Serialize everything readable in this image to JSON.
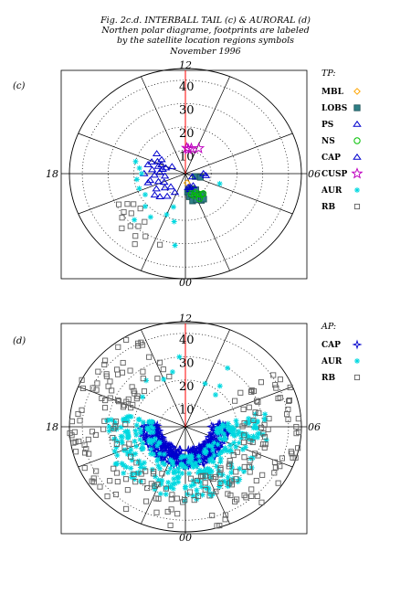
{
  "header": {
    "line1": "Fig. 2c.d. INTERBALL TAIL (c) & AURORAL (d)",
    "line2": "Northen polar diagrame, footprints are labeled",
    "line3": "by the satellite location regions symbols",
    "line4": "November 1996"
  },
  "colors": {
    "MBL": "#ffa500",
    "LOBS": "#2e7f86",
    "PS": "#0000cd",
    "NS": "#00c000",
    "CAP": "#0000cd",
    "CUSP": "#c000c0",
    "AUR": "#00d8e0",
    "RB": "#606060",
    "meridian": "#ff0000"
  },
  "chart_data": [
    {
      "id": "c",
      "type": "scatter",
      "projection": "polar",
      "panel_label": "(c)",
      "title": "",
      "legend_title": "TP:",
      "legend_placement": "right",
      "clock_labels": {
        "top": "12",
        "bottom": "00",
        "left": "18",
        "right": "06"
      },
      "radial_ticks": [
        "40",
        "30",
        "20",
        "10"
      ],
      "rlim": [
        0,
        45
      ],
      "grid": true,
      "series": [
        {
          "name": "MBL",
          "marker": "diamond-open",
          "points": [
            [
              0.6,
              4
            ],
            [
              1.0,
              9
            ]
          ]
        },
        {
          "name": "LOBS",
          "marker": "square-filled",
          "points": [
            [
              0.4,
              8
            ],
            [
              0.6,
              10
            ],
            [
              0.8,
              7
            ],
            [
              1.0,
              9
            ],
            [
              1.2,
              8
            ],
            [
              1.5,
              7
            ],
            [
              1.8,
              10
            ],
            [
              2.0,
              8
            ],
            [
              2.4,
              11
            ],
            [
              4.8,
              4
            ],
            [
              5.0,
              6
            ],
            [
              0.9,
              12
            ],
            [
              1.4,
              12
            ],
            [
              1.9,
              13
            ],
            [
              2.2,
              13
            ]
          ]
        },
        {
          "name": "PS",
          "marker": "triangle-open",
          "points": [
            [
              0.7,
              6
            ],
            [
              1.0,
              7
            ],
            [
              1.2,
              6
            ],
            [
              2.0,
              6
            ]
          ]
        },
        {
          "name": "NS",
          "marker": "circle-open",
          "points": [
            [
              1.0,
              9
            ],
            [
              1.3,
              10
            ],
            [
              1.6,
              9
            ],
            [
              2.0,
              10
            ],
            [
              2.3,
              11
            ],
            [
              2.6,
              11
            ],
            [
              1.8,
              12
            ]
          ]
        },
        {
          "name": "CAP",
          "marker": "triangle-open",
          "points": [
            [
              16.8,
              8
            ],
            [
              16.5,
              10
            ],
            [
              16.3,
              12
            ],
            [
              16.6,
              14
            ],
            [
              16.9,
              11
            ],
            [
              17.2,
              9
            ],
            [
              17.5,
              13
            ],
            [
              17.8,
              10
            ],
            [
              18.2,
              12
            ],
            [
              18.5,
              8
            ],
            [
              18.8,
              14
            ],
            [
              19.2,
              11
            ],
            [
              19.6,
              9
            ],
            [
              20.0,
              13
            ],
            [
              20.5,
              10
            ],
            [
              21.0,
              8
            ],
            [
              21.6,
              12
            ],
            [
              22.2,
              9
            ],
            [
              15.8,
              11
            ],
            [
              15.5,
              14
            ],
            [
              17.0,
              15
            ],
            [
              18.0,
              16
            ],
            [
              19.0,
              15
            ],
            [
              20.5,
              15
            ],
            [
              21.0,
              14
            ],
            [
              5.6,
              8
            ],
            [
              6.0,
              7
            ],
            [
              4.2,
              3
            ],
            [
              16.0,
              6
            ]
          ]
        },
        {
          "name": "CUSP",
          "marker": "star-open",
          "points": [
            [
              11.8,
              11
            ],
            [
              11.2,
              11
            ],
            [
              10.3,
              12
            ],
            [
              11.6,
              10.5
            ]
          ]
        },
        {
          "name": "AUR",
          "marker": "asterisk",
          "points": [
            [
              17.5,
              18
            ],
            [
              18.0,
              17
            ],
            [
              18.5,
              19
            ],
            [
              19.3,
              19
            ],
            [
              20.0,
              18
            ],
            [
              20.8,
              21
            ],
            [
              21.6,
              23
            ],
            [
              21.0,
              28
            ],
            [
              22.5,
              19
            ],
            [
              23.2,
              21
            ],
            [
              23.5,
              31
            ],
            [
              22.8,
              15
            ],
            [
              4.8,
              14
            ],
            [
              17.0,
              20
            ]
          ]
        },
        {
          "name": "RB",
          "marker": "square-open",
          "points": [
            [
              21.4,
              29
            ],
            [
              21.1,
              31
            ],
            [
              21.6,
              33
            ],
            [
              20.6,
              27
            ],
            [
              20.3,
              29
            ],
            [
              20.0,
              26
            ],
            [
              20.9,
              34
            ],
            [
              22.0,
              31
            ],
            [
              21.8,
              36
            ],
            [
              20.5,
              31
            ],
            [
              19.8,
              29
            ],
            [
              20.2,
              24
            ],
            [
              22.8,
              32
            ],
            [
              21.5,
              26
            ],
            [
              20.7,
              23
            ]
          ]
        }
      ]
    },
    {
      "id": "d",
      "type": "scatter",
      "projection": "polar",
      "panel_label": "(d)",
      "title": "",
      "legend_title": "AP:",
      "legend_placement": "right",
      "clock_labels": {
        "top": "12",
        "bottom": "00",
        "left": "18",
        "right": "06"
      },
      "radial_ticks": [
        "40",
        "30",
        "20",
        "10"
      ],
      "rlim": [
        0,
        45
      ],
      "grid": true,
      "series": [
        {
          "name": "CAP",
          "marker": "star4",
          "band": {
            "t_from": 17.6,
            "t_to": 6.4,
            "r_min": 10,
            "r_max": 17,
            "n": 260
          }
        },
        {
          "name": "AUR",
          "marker": "asterisk",
          "band": {
            "t_from": 17.2,
            "t_to": 6.8,
            "r_min": 12,
            "r_max": 32,
            "n": 320
          },
          "extra_points": [
            [
              13.5,
              22
            ],
            [
              14.5,
              25
            ],
            [
              12.8,
              24
            ],
            [
              10.5,
              20
            ],
            [
              9.5,
              22
            ],
            [
              15.5,
              21
            ],
            [
              9.8,
              30
            ],
            [
              12.3,
              30
            ],
            [
              9.3,
              18
            ]
          ]
        },
        {
          "name": "RB",
          "marker": "square-open",
          "band": {
            "t_from": 13.0,
            "t_to": 8.3,
            "r_min": 22,
            "r_max": 45,
            "n": 220
          },
          "extra_points": [
            [
              17.8,
              44
            ],
            [
              17.5,
              42
            ],
            [
              18.2,
              43
            ],
            [
              18.6,
              44
            ],
            [
              6.3,
              44
            ],
            [
              6.0,
              43
            ],
            [
              5.8,
              44
            ],
            [
              16.5,
              43
            ],
            [
              7.5,
              44
            ]
          ]
        }
      ]
    }
  ]
}
